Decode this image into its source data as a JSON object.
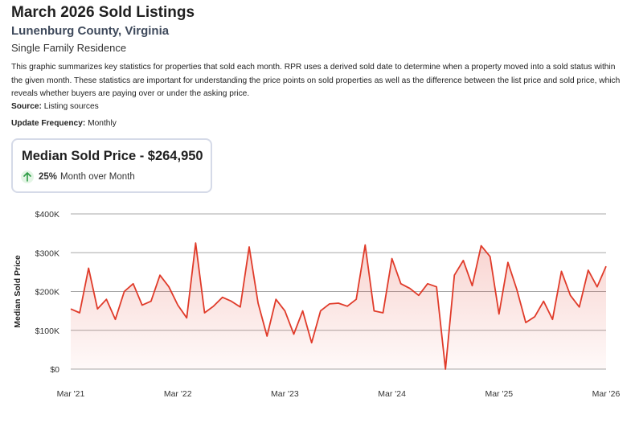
{
  "header": {
    "title": "March 2026 Sold Listings",
    "location": "Lunenburg County, Virginia",
    "property_type": "Single Family Residence",
    "description": "This graphic summarizes key statistics for properties that sold each month. RPR uses a derived sold date to determine when a property moved into a sold status within the given month. These statistics are important for understanding the price points on sold properties as well as the difference between the list price and sold price, which reveals whether buyers are paying over or under the asking price.",
    "source_label": "Source:",
    "source_value": "Listing sources",
    "frequency_label": "Update Frequency:",
    "frequency_value": "Monthly"
  },
  "card": {
    "title": "Median Sold Price - $264,950",
    "change_pct": "25%",
    "change_text": "Month over Month"
  },
  "colors": {
    "line": "#e03b2a",
    "grid": "#a8a8a8",
    "up": "#2e9c45"
  },
  "chart_data": {
    "type": "area",
    "title": "",
    "xlabel": "",
    "ylabel": "Median Sold Price",
    "ylim": [
      0,
      400000
    ],
    "yticks": [
      0,
      100000,
      200000,
      300000,
      400000
    ],
    "ytick_labels": [
      "$0",
      "$100K",
      "$200K",
      "$300K",
      "$400K"
    ],
    "xtick_labels": [
      "Mar '21",
      "Mar '22",
      "Mar '23",
      "Mar '24",
      "Mar '25",
      "Mar '26"
    ],
    "xtick_index": [
      0,
      12,
      24,
      36,
      48,
      60
    ],
    "series": [
      {
        "name": "Median Sold Price",
        "values": [
          155000,
          145000,
          260000,
          155000,
          180000,
          128000,
          200000,
          220000,
          165000,
          175000,
          242000,
          212000,
          165000,
          132000,
          325000,
          145000,
          162000,
          185000,
          175000,
          160000,
          315000,
          170000,
          85000,
          180000,
          150000,
          90000,
          150000,
          68000,
          150000,
          168000,
          170000,
          162000,
          180000,
          320000,
          150000,
          145000,
          285000,
          220000,
          208000,
          190000,
          220000,
          212000,
          0,
          242000,
          280000,
          215000,
          318000,
          290000,
          142000,
          275000,
          205000,
          120000,
          135000,
          175000,
          128000,
          252000,
          190000,
          160000,
          255000,
          212000,
          265000
        ]
      }
    ]
  }
}
